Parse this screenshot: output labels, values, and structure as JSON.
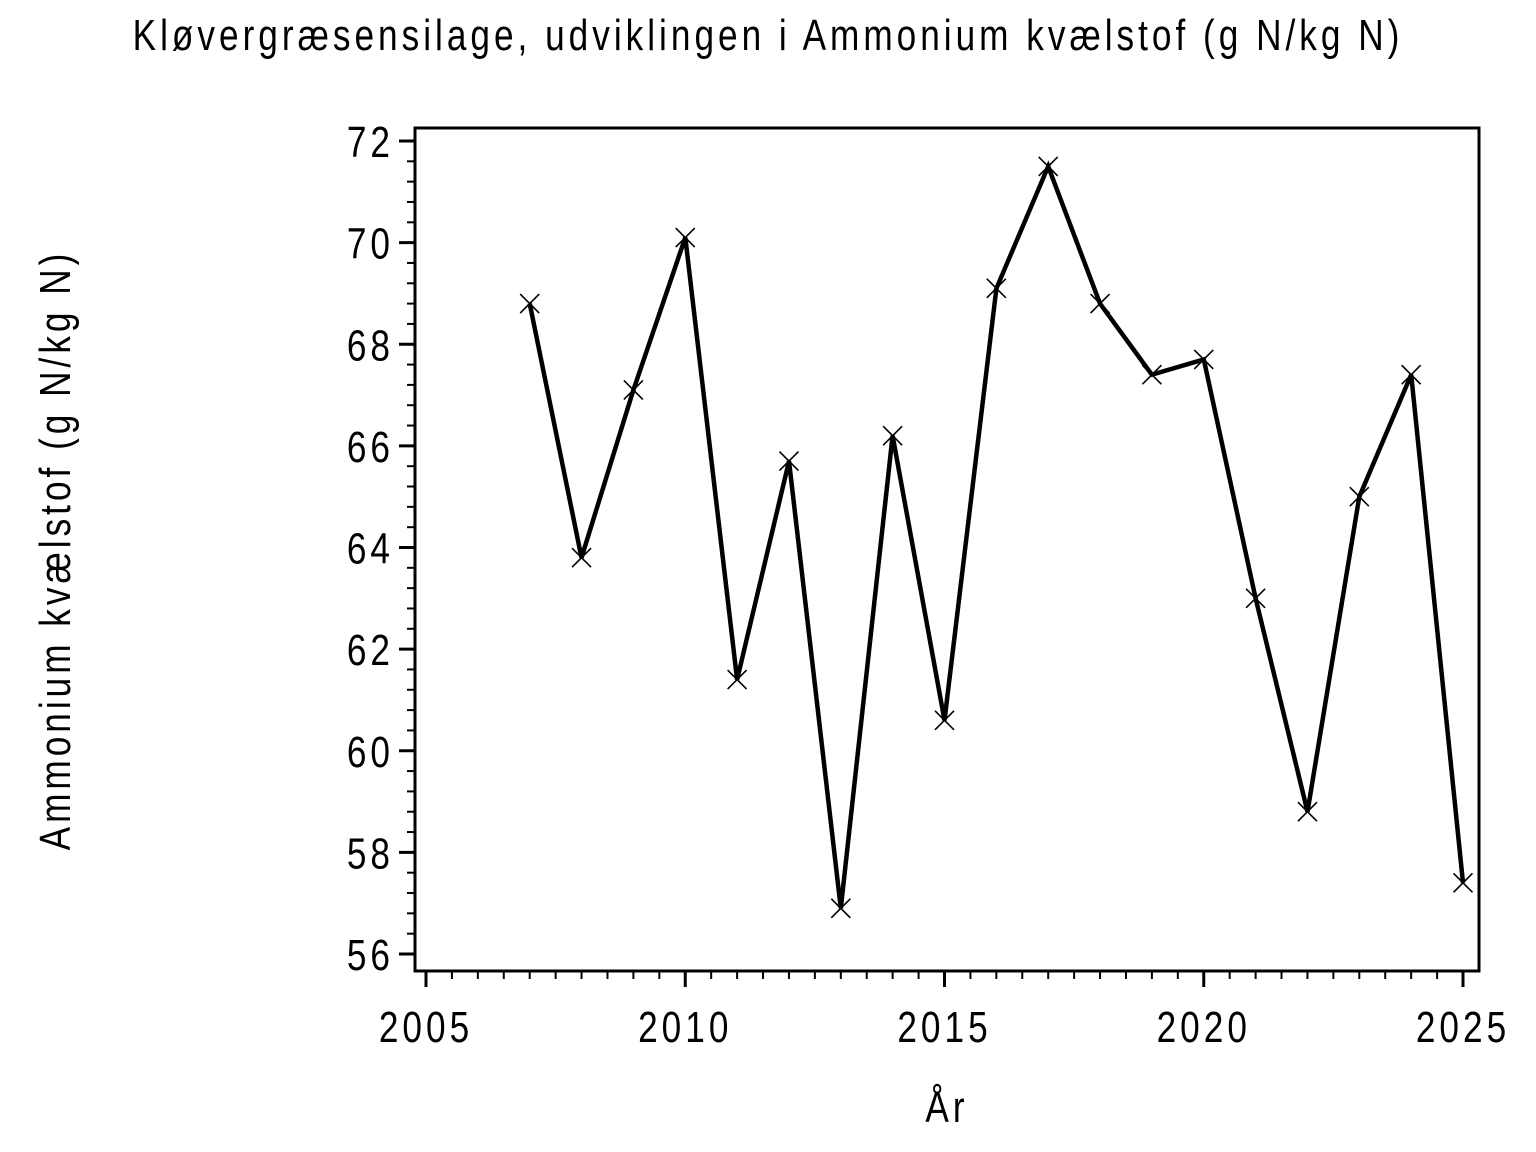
{
  "page": {
    "background": "#ffffff",
    "text_color": "#000000"
  },
  "chart_data": {
    "type": "line",
    "title": "Kløvergræsensilage, udviklingen i Ammonium kvælstof (g N/kg N)",
    "xlabel": "År",
    "ylabel": "Ammonium kvælstof (g N/kg N)",
    "x": [
      2007,
      2008,
      2009,
      2010,
      2011,
      2012,
      2013,
      2014,
      2015,
      2016,
      2017,
      2018,
      2019,
      2020,
      2021,
      2022,
      2023,
      2024,
      2025
    ],
    "y": [
      68.8,
      63.8,
      67.1,
      70.1,
      61.4,
      65.7,
      56.9,
      66.2,
      60.6,
      69.1,
      71.5,
      68.8,
      67.4,
      67.7,
      63.0,
      58.8,
      65.0,
      67.4,
      57.4
    ],
    "series_count": 1,
    "marker": "x-cross",
    "line_color": "#000000",
    "marker_color": "#000000",
    "background": "#ffffff",
    "grid": false,
    "legend": null,
    "xlim": [
      2004.8,
      2025.3
    ],
    "ylim": [
      55.7,
      72.3
    ],
    "x_ticks": {
      "major": [
        2005,
        2010,
        2015,
        2020,
        2025
      ],
      "major_labels": [
        "2005",
        "2010",
        "2015",
        "2020",
        "2025"
      ],
      "minor_step": 0.5
    },
    "y_ticks": {
      "major": [
        56,
        58,
        60,
        62,
        64,
        66,
        68,
        70,
        72
      ],
      "major_labels": [
        "56",
        "58",
        "60",
        "62",
        "64",
        "66",
        "68",
        "70",
        "72"
      ],
      "minor_step": 0.4
    }
  }
}
